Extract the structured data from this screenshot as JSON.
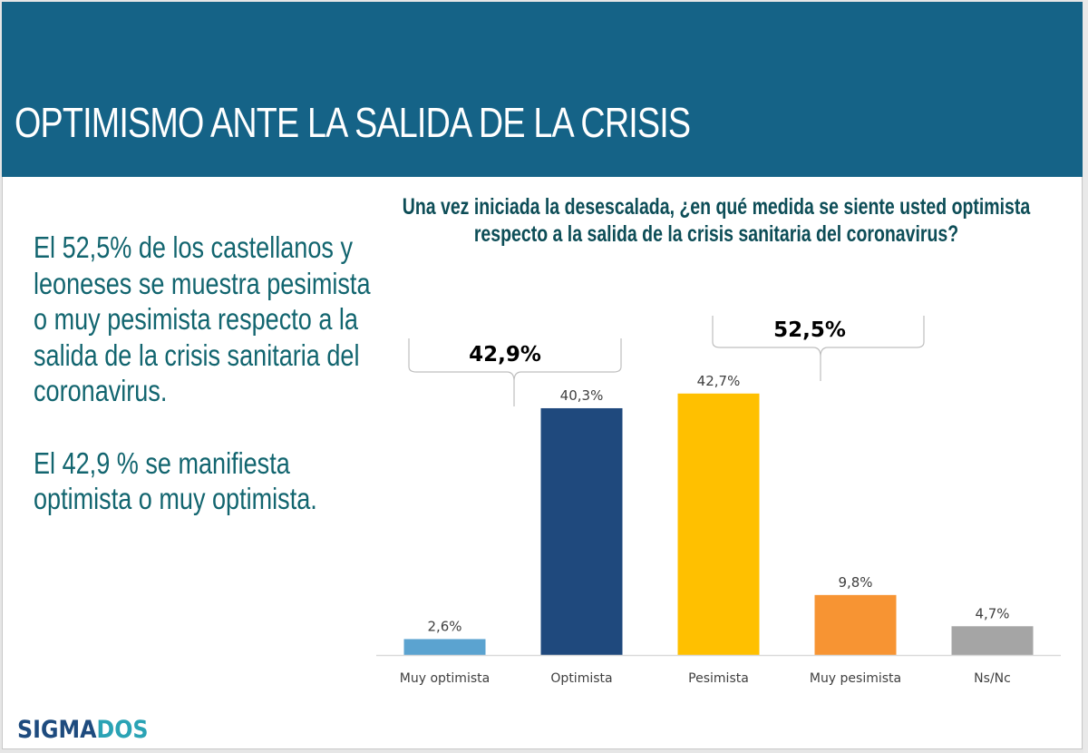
{
  "slide": {
    "title": "OPTIMISMO ANTE LA SALIDA DE LA CRISIS",
    "summary": [
      "El 52,5% de los castellanos y leoneses se muestra pesimista o muy pesimista respecto a la salida de la crisis sanitaria del coronavirus.",
      "El 42,9 % se manifiesta optimista o muy optimista."
    ],
    "logo": {
      "part1": "SIGMA",
      "part2": "DOS"
    },
    "colors": {
      "header": "#156387",
      "summary_text": "#12656f",
      "question_text": "#0d4d57",
      "logo_dark": "#1e4b7e",
      "logo_light": "#2aa3b5"
    }
  },
  "chart_data": {
    "type": "bar",
    "title": "Una vez iniciada la desescalada, ¿en qué medida se siente usted optimista respecto a la salida de la crisis sanitaria del coronavirus?",
    "xlabel": "",
    "ylabel": "",
    "ylim": [
      0,
      45
    ],
    "grid": false,
    "categories": [
      "Muy optimista",
      "Optimista",
      "Pesimista",
      "Muy pesimista",
      "Ns/Nc"
    ],
    "values": [
      2.6,
      40.3,
      42.7,
      9.8,
      4.7
    ],
    "value_labels": [
      "2,6%",
      "40,3%",
      "42,7%",
      "9,8%",
      "4,7%"
    ],
    "bar_colors": [
      "#5ba3d0",
      "#1f497d",
      "#ffc000",
      "#f79433",
      "#a5a5a5"
    ],
    "annotations": [
      {
        "label": "42,9%",
        "spans": [
          "Muy optimista",
          "Optimista"
        ],
        "type": "brace"
      },
      {
        "label": "52,5%",
        "spans": [
          "Pesimista",
          "Muy pesimista"
        ],
        "type": "brace"
      }
    ]
  }
}
